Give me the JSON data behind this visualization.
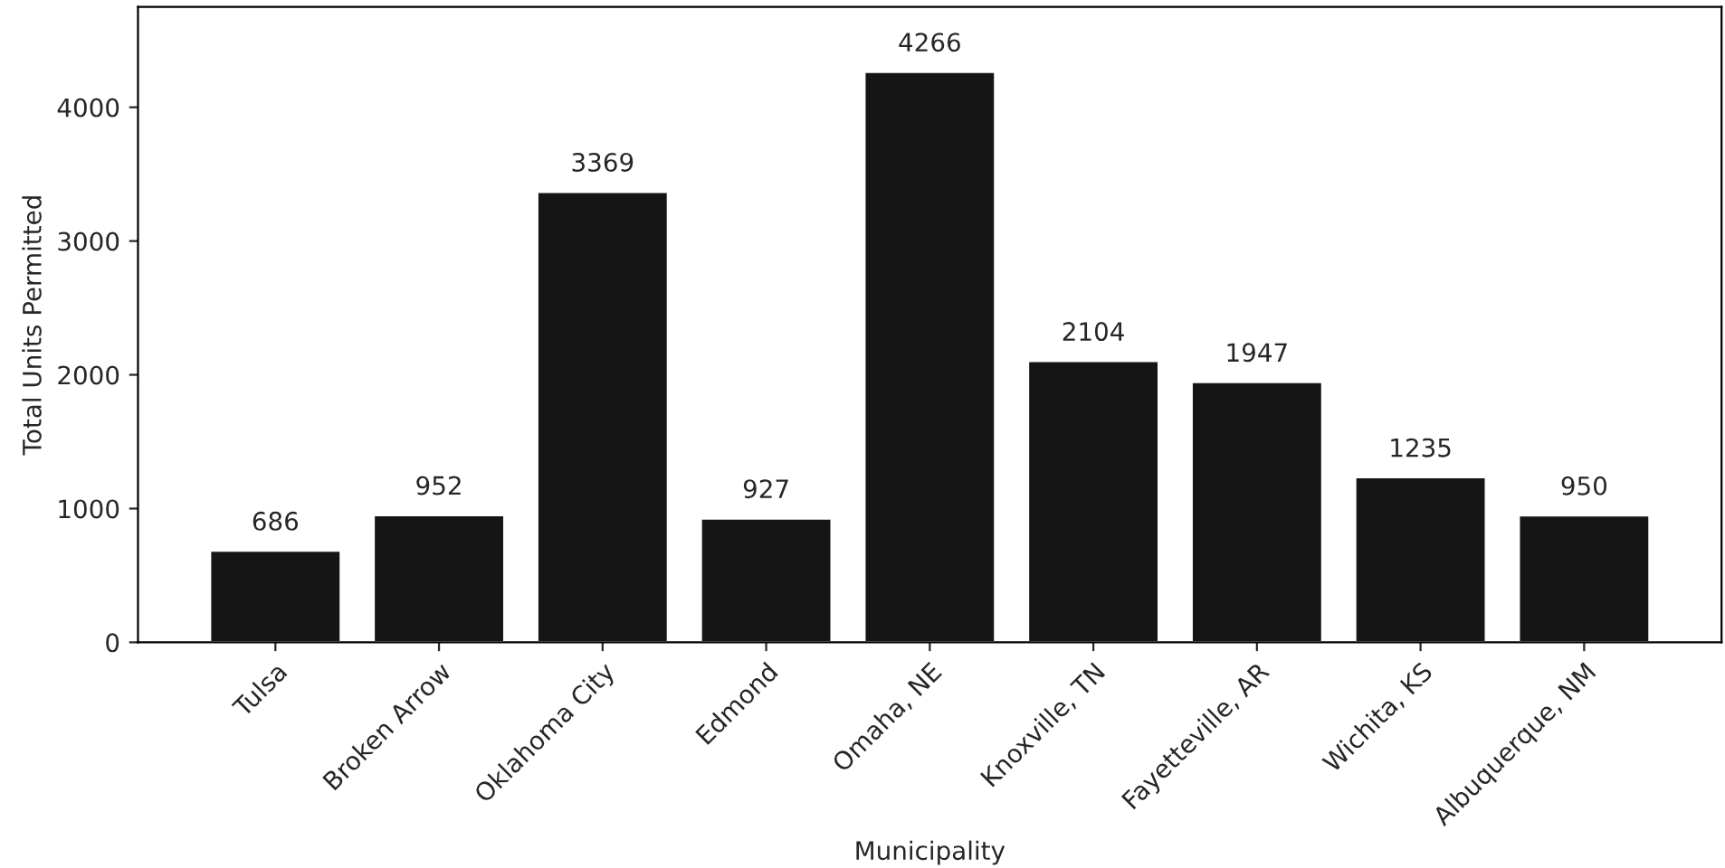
{
  "chart_data": {
    "type": "bar",
    "xlabel": "Municipality",
    "ylabel": "Total Units Permitted",
    "categories": [
      "Tulsa",
      "Broken Arrow",
      "Oklahoma City",
      "Edmond",
      "Omaha, NE",
      "Knoxville, TN",
      "Fayetteville, AR",
      "Wichita, KS",
      "Albuquerque, NM"
    ],
    "values": [
      686,
      952,
      3369,
      927,
      4266,
      2104,
      1947,
      1235,
      950
    ],
    "color": "#151515",
    "ylim": [
      0,
      4750
    ],
    "yticks": [
      0,
      1000,
      2000,
      3000,
      4000
    ],
    "data_labels": true,
    "grid": false,
    "legend": false
  }
}
